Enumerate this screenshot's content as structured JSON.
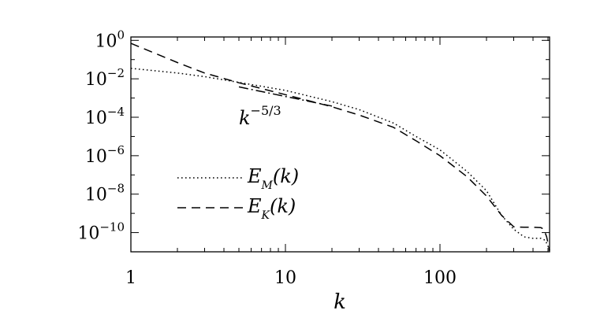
{
  "chart_data": {
    "type": "line",
    "xscale": "log",
    "yscale": "log",
    "xlabel": "k",
    "ylabel": "",
    "xlim": [
      1,
      512
    ],
    "ylim": [
      1e-11,
      1.5
    ],
    "x_ticks": [
      {
        "value": 1,
        "label": "1"
      },
      {
        "value": 10,
        "label": "10"
      },
      {
        "value": 100,
        "label": "100"
      }
    ],
    "y_ticks": [
      {
        "value": 1,
        "base": "10",
        "exp": "0"
      },
      {
        "value": 0.01,
        "base": "10",
        "exp": "−2"
      },
      {
        "value": 0.0001,
        "base": "10",
        "exp": "−4"
      },
      {
        "value": 1e-06,
        "base": "10",
        "exp": "−6"
      },
      {
        "value": 1e-08,
        "base": "10",
        "exp": "−8"
      },
      {
        "value": 1e-10,
        "base": "10",
        "exp": "−10"
      }
    ],
    "series": [
      {
        "name": "E_M(k)",
        "style": "dotted",
        "points": [
          [
            1,
            0.035
          ],
          [
            2,
            0.02
          ],
          [
            3,
            0.013
          ],
          [
            5,
            0.0065
          ],
          [
            10,
            0.0025
          ],
          [
            20,
            0.00065
          ],
          [
            30,
            0.00025
          ],
          [
            50,
            5e-05
          ],
          [
            70,
            1e-05
          ],
          [
            100,
            2e-06
          ],
          [
            150,
            1.5e-07
          ],
          [
            200,
            1.5e-08
          ],
          [
            250,
            8e-10
          ],
          [
            300,
            1.5e-10
          ],
          [
            350,
            6e-11
          ],
          [
            400,
            5e-11
          ],
          [
            450,
            5e-11
          ],
          [
            480,
            4e-11
          ],
          [
            500,
            2e-11
          ],
          [
            512,
            1e-11
          ]
        ]
      },
      {
        "name": "E_K(k)",
        "style": "dashed",
        "points": [
          [
            1,
            0.7
          ],
          [
            2,
            0.07
          ],
          [
            3,
            0.02
          ],
          [
            5,
            0.0062
          ],
          [
            10,
            0.0015
          ],
          [
            20,
            0.00035
          ],
          [
            30,
            0.00013
          ],
          [
            50,
            3e-05
          ],
          [
            70,
            6e-06
          ],
          [
            100,
            1e-06
          ],
          [
            150,
            8e-08
          ],
          [
            200,
            8e-09
          ],
          [
            250,
            8e-10
          ],
          [
            300,
            2e-10
          ],
          [
            350,
            1.9e-10
          ],
          [
            400,
            1.9e-10
          ],
          [
            450,
            1.8e-10
          ],
          [
            470,
            1.5e-10
          ],
          [
            490,
            6e-11
          ],
          [
            512,
            1.2e-11
          ]
        ]
      },
      {
        "name": "k^-5/3",
        "style": "dash-dot",
        "points": [
          [
            5,
            0.0038
          ],
          [
            10,
            0.0012
          ],
          [
            20,
            0.00038
          ]
        ]
      }
    ],
    "legend": {
      "position": "center-left",
      "items": [
        {
          "style": "dotted",
          "name": "E",
          "sub": "M",
          "arg": "(k)"
        },
        {
          "style": "dashed",
          "name": "E",
          "sub": "K",
          "arg": "(k)"
        }
      ]
    },
    "annotation": {
      "base": "k",
      "exp": "−5/3"
    }
  }
}
